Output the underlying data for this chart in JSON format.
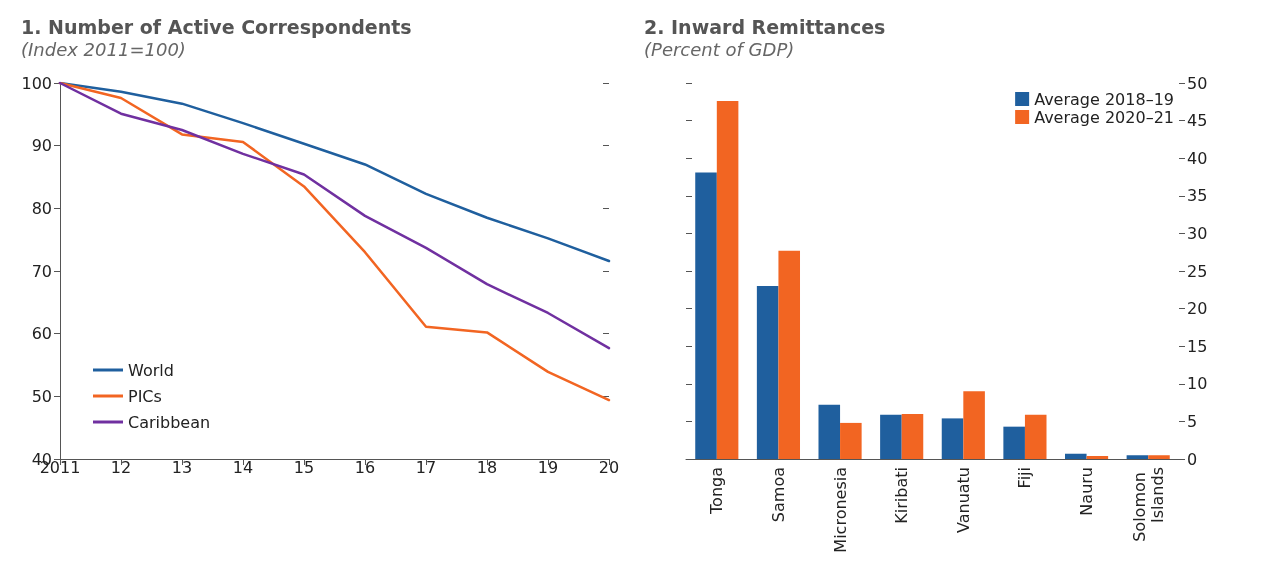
{
  "chart_data": [
    {
      "type": "line",
      "title": "1. Number of Active Correspondents",
      "subtitle": "(Index 2011=100)",
      "categories": [
        "2011",
        "12",
        "13",
        "14",
        "15",
        "16",
        "17",
        "18",
        "19",
        "20"
      ],
      "series": [
        {
          "name": "World",
          "color": "#1f5f9e",
          "values": [
            100,
            98.6,
            96.7,
            93.6,
            90.3,
            87.0,
            82.3,
            78.5,
            75.2,
            71.6
          ]
        },
        {
          "name": "PICs",
          "color": "#f26522",
          "values": [
            100,
            97.6,
            91.8,
            90.6,
            83.5,
            73.0,
            61.1,
            60.2,
            53.9,
            49.4
          ]
        },
        {
          "name": "Caribbean",
          "color": "#7030a0",
          "values": [
            100,
            95.1,
            92.5,
            88.7,
            85.4,
            78.8,
            73.7,
            67.9,
            63.3,
            57.7
          ]
        }
      ],
      "ylim": [
        40,
        100
      ],
      "yticks": [
        40,
        50,
        60,
        70,
        80,
        90,
        100
      ],
      "grid": false,
      "legend": "bottom left",
      "marker": "none",
      "line_style": "solid"
    },
    {
      "type": "bar",
      "title": "2. Inward Remittances",
      "subtitle": "(Percent of GDP)",
      "categories": [
        "Tonga",
        "Samoa",
        "Micronesia",
        "Kiribati",
        "Vanuatu",
        "Fiji",
        "Nauru",
        "Solomon Islands"
      ],
      "series": [
        {
          "name": "Average 2018–19",
          "color": "#1f5f9e",
          "axis": "y2",
          "values": [
            38.1,
            23.0,
            7.2,
            5.9,
            5.4,
            4.3,
            0.7,
            0.5
          ]
        },
        {
          "name": "Average 2020–21",
          "color": "#f26522",
          "axis": "y2",
          "values": [
            47.6,
            27.7,
            4.8,
            6.0,
            9.0,
            5.9,
            0.4,
            0.5
          ]
        }
      ],
      "y2lim": [
        0,
        50
      ],
      "y2ticks": [
        0,
        5,
        10,
        15,
        20,
        25,
        30,
        35,
        40,
        45,
        50
      ],
      "grid": false,
      "legend": "top right"
    }
  ]
}
